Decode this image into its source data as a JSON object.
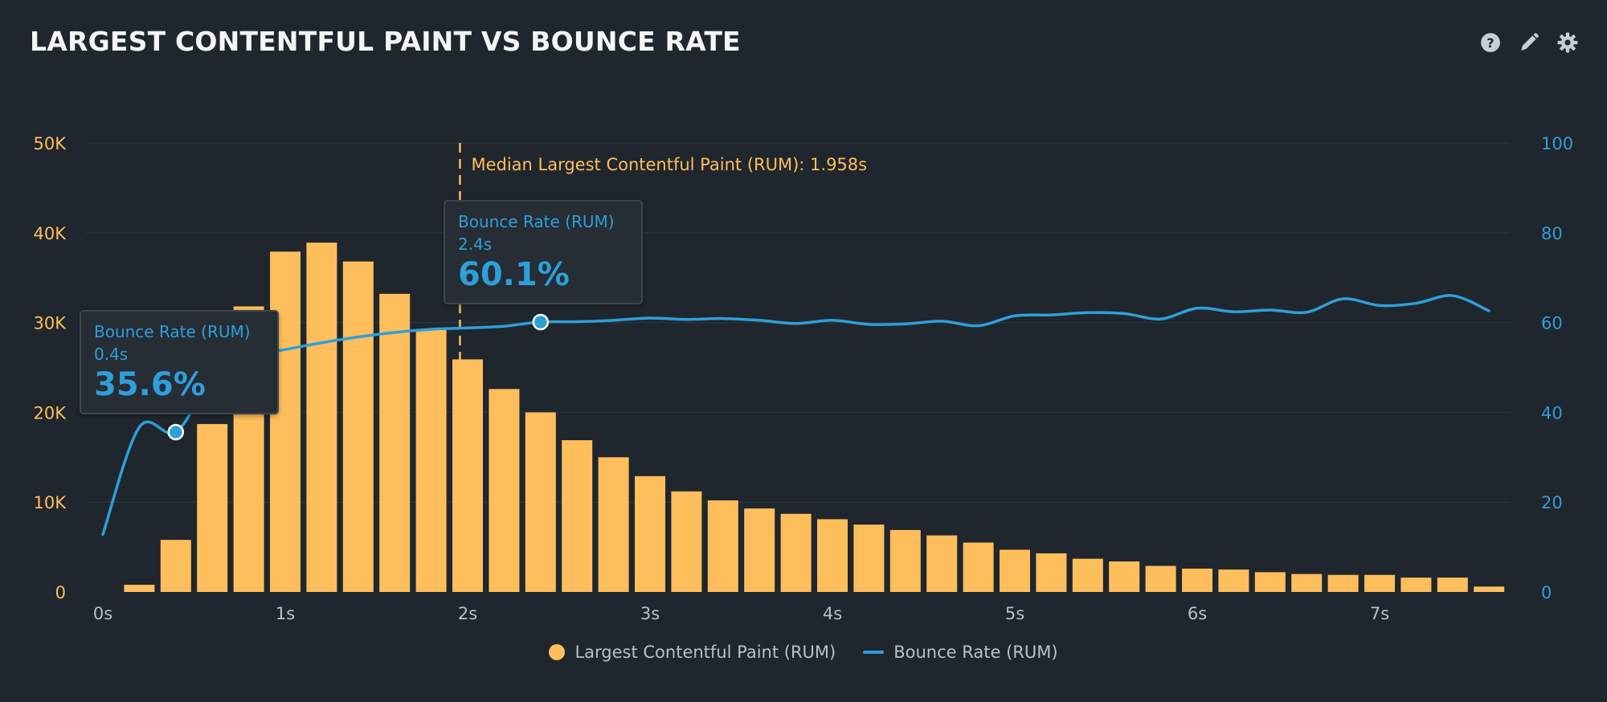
{
  "header": {
    "title": "LARGEST CONTENTFUL PAINT VS BOUNCE RATE",
    "icons": [
      "help-icon",
      "edit-icon",
      "gear-icon"
    ]
  },
  "colors": {
    "background": "#1f262d",
    "bars": "#ffbe5c",
    "line": "#2e9fd9",
    "grid": "#2b333a",
    "left_axis_text": "#ffbe5c",
    "right_axis_text": "#2e9fd9",
    "x_axis_text": "#b9c0c6"
  },
  "chart_data": {
    "type": "bar",
    "title": "LARGEST CONTENTFUL PAINT VS BOUNCE RATE",
    "xlabel": "",
    "x_ticks": [
      "0s",
      "1s",
      "2s",
      "3s",
      "4s",
      "5s",
      "6s",
      "7s"
    ],
    "xlim": [
      0,
      7.8
    ],
    "y_left": {
      "ticks": [
        "0",
        "10K",
        "20K",
        "30K",
        "40K",
        "50K"
      ],
      "ylim": [
        0,
        50000
      ]
    },
    "y_right": {
      "ticks": [
        "0",
        "20",
        "40",
        "60",
        "80",
        "100"
      ],
      "ylim": [
        0,
        100
      ]
    },
    "grid": true,
    "legend_position": "bottom-center",
    "series": [
      {
        "name": "Largest Contentful Paint (RUM)",
        "type": "bar",
        "axis": "left",
        "x": [
          0.2,
          0.4,
          0.6,
          0.8,
          1.0,
          1.2,
          1.4,
          1.6,
          1.8,
          2.0,
          2.2,
          2.4,
          2.6,
          2.8,
          3.0,
          3.2,
          3.4,
          3.6,
          3.8,
          4.0,
          4.2,
          4.4,
          4.6,
          4.8,
          5.0,
          5.2,
          5.4,
          5.6,
          5.8,
          6.0,
          6.2,
          6.4,
          6.6,
          6.8,
          7.0,
          7.2,
          7.4,
          7.6
        ],
        "values": [
          800,
          5800,
          18700,
          31800,
          37900,
          38900,
          36800,
          33200,
          29300,
          25900,
          22600,
          20000,
          16900,
          15000,
          12900,
          11200,
          10200,
          9300,
          8700,
          8100,
          7500,
          6900,
          6300,
          5500,
          4700,
          4300,
          3700,
          3400,
          2900,
          2600,
          2500,
          2200,
          2000,
          1900,
          1900,
          1600,
          1600,
          600
        ]
      },
      {
        "name": "Bounce Rate (RUM)",
        "type": "line",
        "axis": "right",
        "x": [
          0.0,
          0.2,
          0.4,
          0.6,
          0.8,
          1.0,
          1.2,
          1.4,
          1.6,
          1.8,
          2.0,
          2.2,
          2.4,
          2.6,
          2.8,
          3.0,
          3.2,
          3.4,
          3.6,
          3.8,
          4.0,
          4.2,
          4.4,
          4.6,
          4.8,
          5.0,
          5.2,
          5.4,
          5.6,
          5.8,
          6.0,
          6.2,
          6.4,
          6.6,
          6.8,
          7.0,
          7.2,
          7.4,
          7.6
        ],
        "values": [
          12.8,
          36.7,
          35.6,
          47.5,
          52.5,
          54.0,
          55.5,
          56.8,
          57.8,
          58.5,
          58.8,
          59.2,
          60.1,
          60.2,
          60.5,
          61.0,
          60.7,
          60.9,
          60.5,
          59.8,
          60.5,
          59.6,
          59.7,
          60.3,
          59.3,
          61.5,
          61.7,
          62.2,
          62.0,
          60.8,
          63.2,
          62.4,
          62.8,
          62.3,
          65.3,
          63.8,
          64.3,
          66.0,
          62.6
        ]
      }
    ],
    "annotations": [
      {
        "type": "vertical-line",
        "x": 1.958,
        "label": "Median Largest Contentful Paint (RUM): 1.958s"
      }
    ],
    "tooltips": [
      {
        "series": "Bounce Rate (RUM)",
        "x_label": "0.4s",
        "x": 0.4,
        "value": 35.6,
        "value_label": "35.6%"
      },
      {
        "series": "Bounce Rate (RUM)",
        "x_label": "2.4s",
        "x": 2.4,
        "value": 60.1,
        "value_label": "60.1%"
      }
    ]
  },
  "legend": {
    "items": [
      {
        "label": "Largest Contentful Paint (RUM)",
        "symbol": "dot"
      },
      {
        "label": "Bounce Rate (RUM)",
        "symbol": "line"
      }
    ]
  }
}
